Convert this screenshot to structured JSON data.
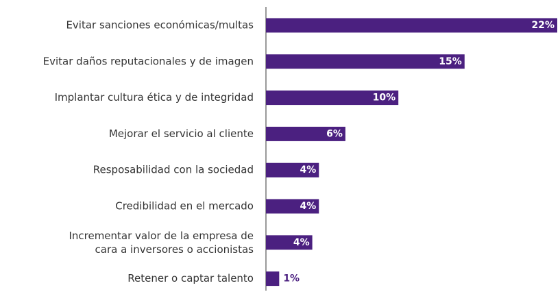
{
  "chart_data": {
    "type": "barh",
    "categories": [
      "Evitar sanciones económicas/multas",
      "Evitar daños reputacionales y de imagen",
      "Implantar cultura ética y de integridad",
      "Mejorar el servicio al cliente",
      "Resposabilidad con la sociedad",
      "Credibilidad en el mercado",
      "Incrementar valor de la empresa de\ncara a inversores o accionistas",
      "Retener o captar talento"
    ],
    "values": [
      22,
      15,
      10,
      6,
      4,
      4,
      3.5,
      1
    ],
    "value_labels": [
      "22%",
      "15%",
      "10%",
      "6%",
      "4%",
      "4%",
      "4%",
      "1%"
    ],
    "color": "#4b2080",
    "xlim": [
      0,
      22
    ]
  }
}
